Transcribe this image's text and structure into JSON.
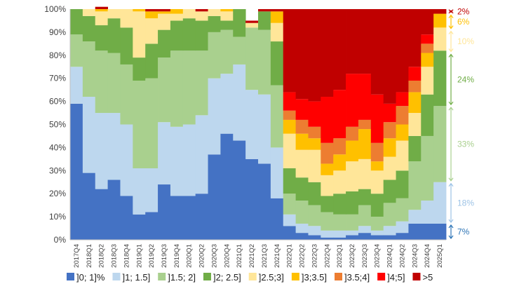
{
  "chart_data": {
    "type": "stacked-bar-100",
    "title": "",
    "xlabel": "",
    "ylabel": "",
    "ylim": [
      0,
      100
    ],
    "yticks": [
      "0%",
      "10%",
      "20%",
      "30%",
      "40%",
      "50%",
      "60%",
      "70%",
      "80%",
      "90%",
      "100%"
    ],
    "xlabels_shown": [
      "2017Q4",
      "2018Q1",
      "2018Q2",
      "2018Q3",
      "2018Q4",
      "2019Q1",
      "2019Q2",
      "2019Q3",
      "2019Q4",
      "2020Q1",
      "2020Q2",
      "2020Q3",
      "2020Q4",
      "2021Q1",
      "2021Q2",
      "2021Q3",
      "2021Q4",
      "2022Q1",
      "2022Q2",
      "2022Q3",
      "2022Q4",
      "2023Q1",
      "2023Q2",
      "2023Q3",
      "2023Q4",
      "2024Q1",
      "2024Q2",
      "2024Q3",
      "2024Q4",
      "2025Q1"
    ],
    "legend_position": "bottom",
    "grid": false,
    "categories": [
      "2017Q4",
      "2018Q1",
      "2018Q2",
      "2018Q3",
      "2018Q4",
      "2019Q1",
      "2019Q2",
      "2019Q3",
      "2019Q4",
      "2020Q1",
      "2020Q2",
      "2020Q3",
      "2020Q4",
      "2021Q1",
      "2021Q2",
      "2021Q3",
      "2021Q4",
      "2022Q1",
      "2022Q2",
      "2022Q3",
      "2022Q4",
      "2023Q1",
      "2023Q2",
      "2023Q3",
      "2023Q4",
      "2024Q1",
      "2024Q2",
      "2024Q3",
      "2024Q4",
      "2025Q1"
    ],
    "series": [
      {
        "name": "]0; 1]%",
        "color": "#4472c4",
        "values": [
          59,
          29,
          22,
          26,
          19,
          11,
          12,
          24,
          19,
          19,
          20,
          37,
          46,
          43,
          35,
          33,
          18,
          6,
          3,
          2,
          1,
          1,
          2,
          3,
          2,
          2,
          3,
          7,
          7,
          7
        ]
      },
      {
        "name": "]1; 1.5]",
        "color": "#bdd7ee",
        "values": [
          16,
          33,
          33,
          29,
          31,
          20,
          19,
          27,
          30,
          31,
          34,
          33,
          26,
          33,
          30,
          30,
          22,
          5,
          4,
          4,
          3,
          3,
          2,
          3,
          2,
          4,
          5,
          6,
          10,
          18
        ]
      },
      {
        "name": "]1.5; 2]",
        "color": "#a9d08e",
        "values": [
          14,
          24,
          27,
          26,
          26,
          38,
          39,
          28,
          33,
          32,
          28,
          20,
          19,
          12,
          27,
          28,
          27,
          9,
          10,
          9,
          8,
          7,
          7,
          9,
          6,
          10,
          10,
          21,
          28,
          33
        ]
      },
      {
        "name": "]2; 2.5]",
        "color": "#70ad47",
        "values": [
          11,
          11,
          11,
          15,
          16,
          10,
          15,
          12,
          13,
          14,
          13,
          7,
          4,
          12,
          0,
          8,
          19,
          11,
          10,
          10,
          7,
          9,
          10,
          7,
          10,
          10,
          12,
          11,
          18,
          24
        ]
      },
      {
        "name": "]2.5;3]",
        "color": "#ffe699",
        "values": [
          0,
          3,
          6,
          4,
          8,
          20,
          11,
          7,
          3,
          4,
          4,
          3,
          4,
          0,
          2,
          0,
          8,
          15,
          12,
          14,
          9,
          10,
          13,
          13,
          10,
          10,
          13,
          10,
          12,
          10
        ]
      },
      {
        "name": "]3;3.5]",
        "color": "#ffc000",
        "values": [
          0,
          0,
          1,
          0,
          0,
          1,
          3,
          1,
          2,
          0,
          0,
          0,
          1,
          0,
          0,
          0,
          5,
          6,
          7,
          5,
          5,
          7,
          9,
          13,
          4,
          8,
          7,
          9,
          6,
          6
        ]
      },
      {
        "name": "]3.5;4]",
        "color": "#ed7d31",
        "values": [
          0,
          0,
          0,
          0,
          0,
          0,
          0,
          0,
          0,
          0,
          0,
          0,
          0,
          0,
          0,
          0,
          0,
          4,
          6,
          5,
          9,
          7,
          6,
          4,
          8,
          7,
          8,
          5,
          4,
          0
        ]
      },
      {
        "name": "]4;5]",
        "color": "#ff0000",
        "values": [
          0,
          0,
          0,
          0,
          0,
          0,
          0,
          0,
          0,
          0,
          0,
          0,
          0,
          0,
          0,
          0,
          0,
          8,
          9,
          11,
          20,
          21,
          23,
          20,
          21,
          8,
          6,
          6,
          4,
          0
        ]
      },
      {
        "name": ">5",
        "color": "#c00000",
        "values": [
          0,
          0,
          1,
          0,
          0,
          0,
          1,
          1,
          0,
          0,
          1,
          0,
          0,
          0,
          1,
          1,
          1,
          36,
          39,
          40,
          38,
          35,
          28,
          28,
          37,
          41,
          36,
          25,
          11,
          2
        ]
      }
    ],
    "annotations": [
      {
        "text": "2%",
        "color": "#c00000",
        "from": 98,
        "to": 100
      },
      {
        "text": "6%",
        "color": "#ffc000",
        "from": 91,
        "to": 98
      },
      {
        "text": "10%",
        "color": "#ffe699",
        "from": 81,
        "to": 91
      },
      {
        "text": "24%",
        "color": "#70ad47",
        "from": 58,
        "to": 81
      },
      {
        "text": "33%",
        "color": "#a9d08e",
        "from": 25,
        "to": 58
      },
      {
        "text": "18%",
        "color": "#9dc3e6",
        "from": 7,
        "to": 25
      },
      {
        "text": "7%",
        "color": "#2e75b6",
        "from": 0,
        "to": 7
      }
    ]
  }
}
